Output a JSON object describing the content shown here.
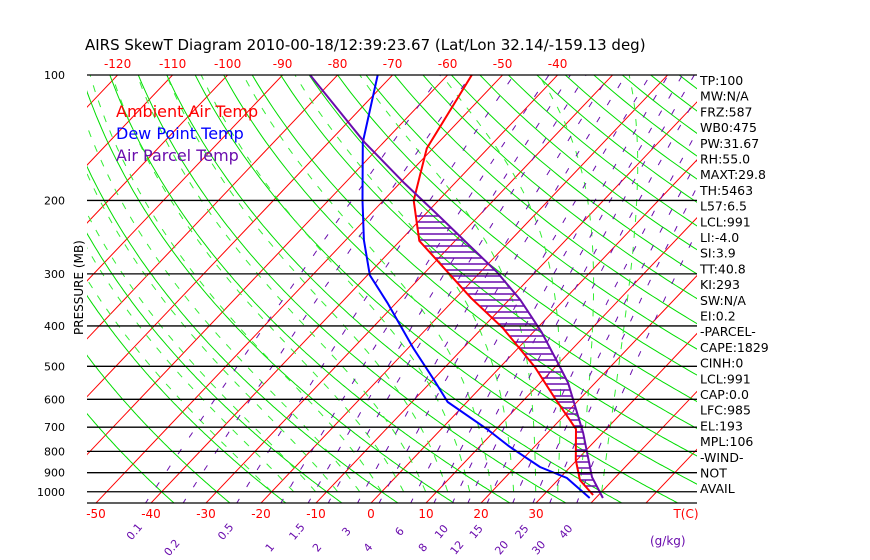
{
  "title": "AIRS SkewT Diagram 2010-00-18/12:39:23.67 (Lat/Lon 32.14/-159.13 deg)",
  "legend": [
    {
      "label": "Ambient Air Temp",
      "color": "#ff0000"
    },
    {
      "label": "Dew Point Temp",
      "color": "#0000ff"
    },
    {
      "label": "Air Parcel Temp",
      "color": "#6a0dad"
    }
  ],
  "stats": [
    "TP:100",
    "MW:N/A",
    "FRZ:587",
    "WB0:475",
    "PW:31.67",
    "RH:55.0",
    "MAXT:29.8",
    "TH:5463",
    "L57:6.5",
    "LCL:991",
    "LI:-4.0",
    "SI:3.9",
    "TT:40.8",
    "KI:293",
    "SW:N/A",
    "EI:0.2",
    "-PARCEL-",
    "CAPE:1829",
    "CINH:0",
    "LCL:991",
    "CAP:0.0",
    "LFC:985",
    "EL:193",
    "MPL:106",
    "-WIND-",
    "NOT",
    "AVAIL"
  ],
  "chart_data": {
    "type": "line",
    "title": "AIRS SkewT Diagram 2010-00-18/12:39:23.67 (Lat/Lon 32.14/-159.13 deg)",
    "ylabel": "PRESSURE (MB)",
    "xlabel": "T(C)",
    "mixing_ratio_unit": "(g/kg)",
    "pressure_ticks": [
      100,
      200,
      300,
      400,
      500,
      600,
      700,
      800,
      900,
      1000
    ],
    "bottom_temp_ticks": [
      -50,
      -40,
      -30,
      -20,
      -10,
      0,
      10,
      20,
      30
    ],
    "top_temp_ticks": [
      -120,
      -110,
      -100,
      -90,
      -80,
      -70,
      -60,
      -50,
      -40
    ],
    "mixing_ratio_ticks": [
      "0.1",
      "0.2",
      "0.5",
      "1",
      "1.5",
      "2",
      "3",
      "4",
      "6",
      "8",
      "10",
      "12",
      "15",
      "20",
      "25",
      "30",
      "40"
    ],
    "ylim": [
      1050,
      100
    ],
    "series": [
      {
        "name": "Ambient Air Temp",
        "color": "#ff0000",
        "p": [
          100,
          150,
          174,
          200,
          250,
          284,
          343,
          405,
          502,
          596,
          707,
          839,
          937,
          1018
        ],
        "t": [
          -55.6,
          -51.1,
          -47.7,
          -44.5,
          -36.5,
          -28.7,
          -17.2,
          -6.2,
          6.3,
          15.3,
          24.5,
          29.8,
          34.0,
          39.0
        ]
      },
      {
        "name": "Dew Point Temp",
        "color": "#0000ff",
        "p": [
          100,
          145,
          200,
          249,
          302,
          352,
          452,
          539,
          609,
          707,
          781,
          872,
          927,
          1035
        ],
        "t": [
          -72.7,
          -63.8,
          -53.8,
          -46.7,
          -39.6,
          -31.6,
          -19.1,
          -9.8,
          -3.5,
          8.3,
          15.6,
          24.5,
          31.3,
          38.9
        ]
      },
      {
        "name": "Air Parcel Temp",
        "color": "#6a0dad",
        "p": [
          100,
          145,
          182,
          219,
          297,
          346,
          414,
          491,
          548,
          723,
          922,
          1035
        ],
        "t": [
          -85.0,
          -63.5,
          -49.1,
          -36.9,
          -17.0,
          -8.0,
          1.5,
          9.8,
          15.1,
          26.5,
          35.7,
          41.3
        ]
      }
    ]
  }
}
